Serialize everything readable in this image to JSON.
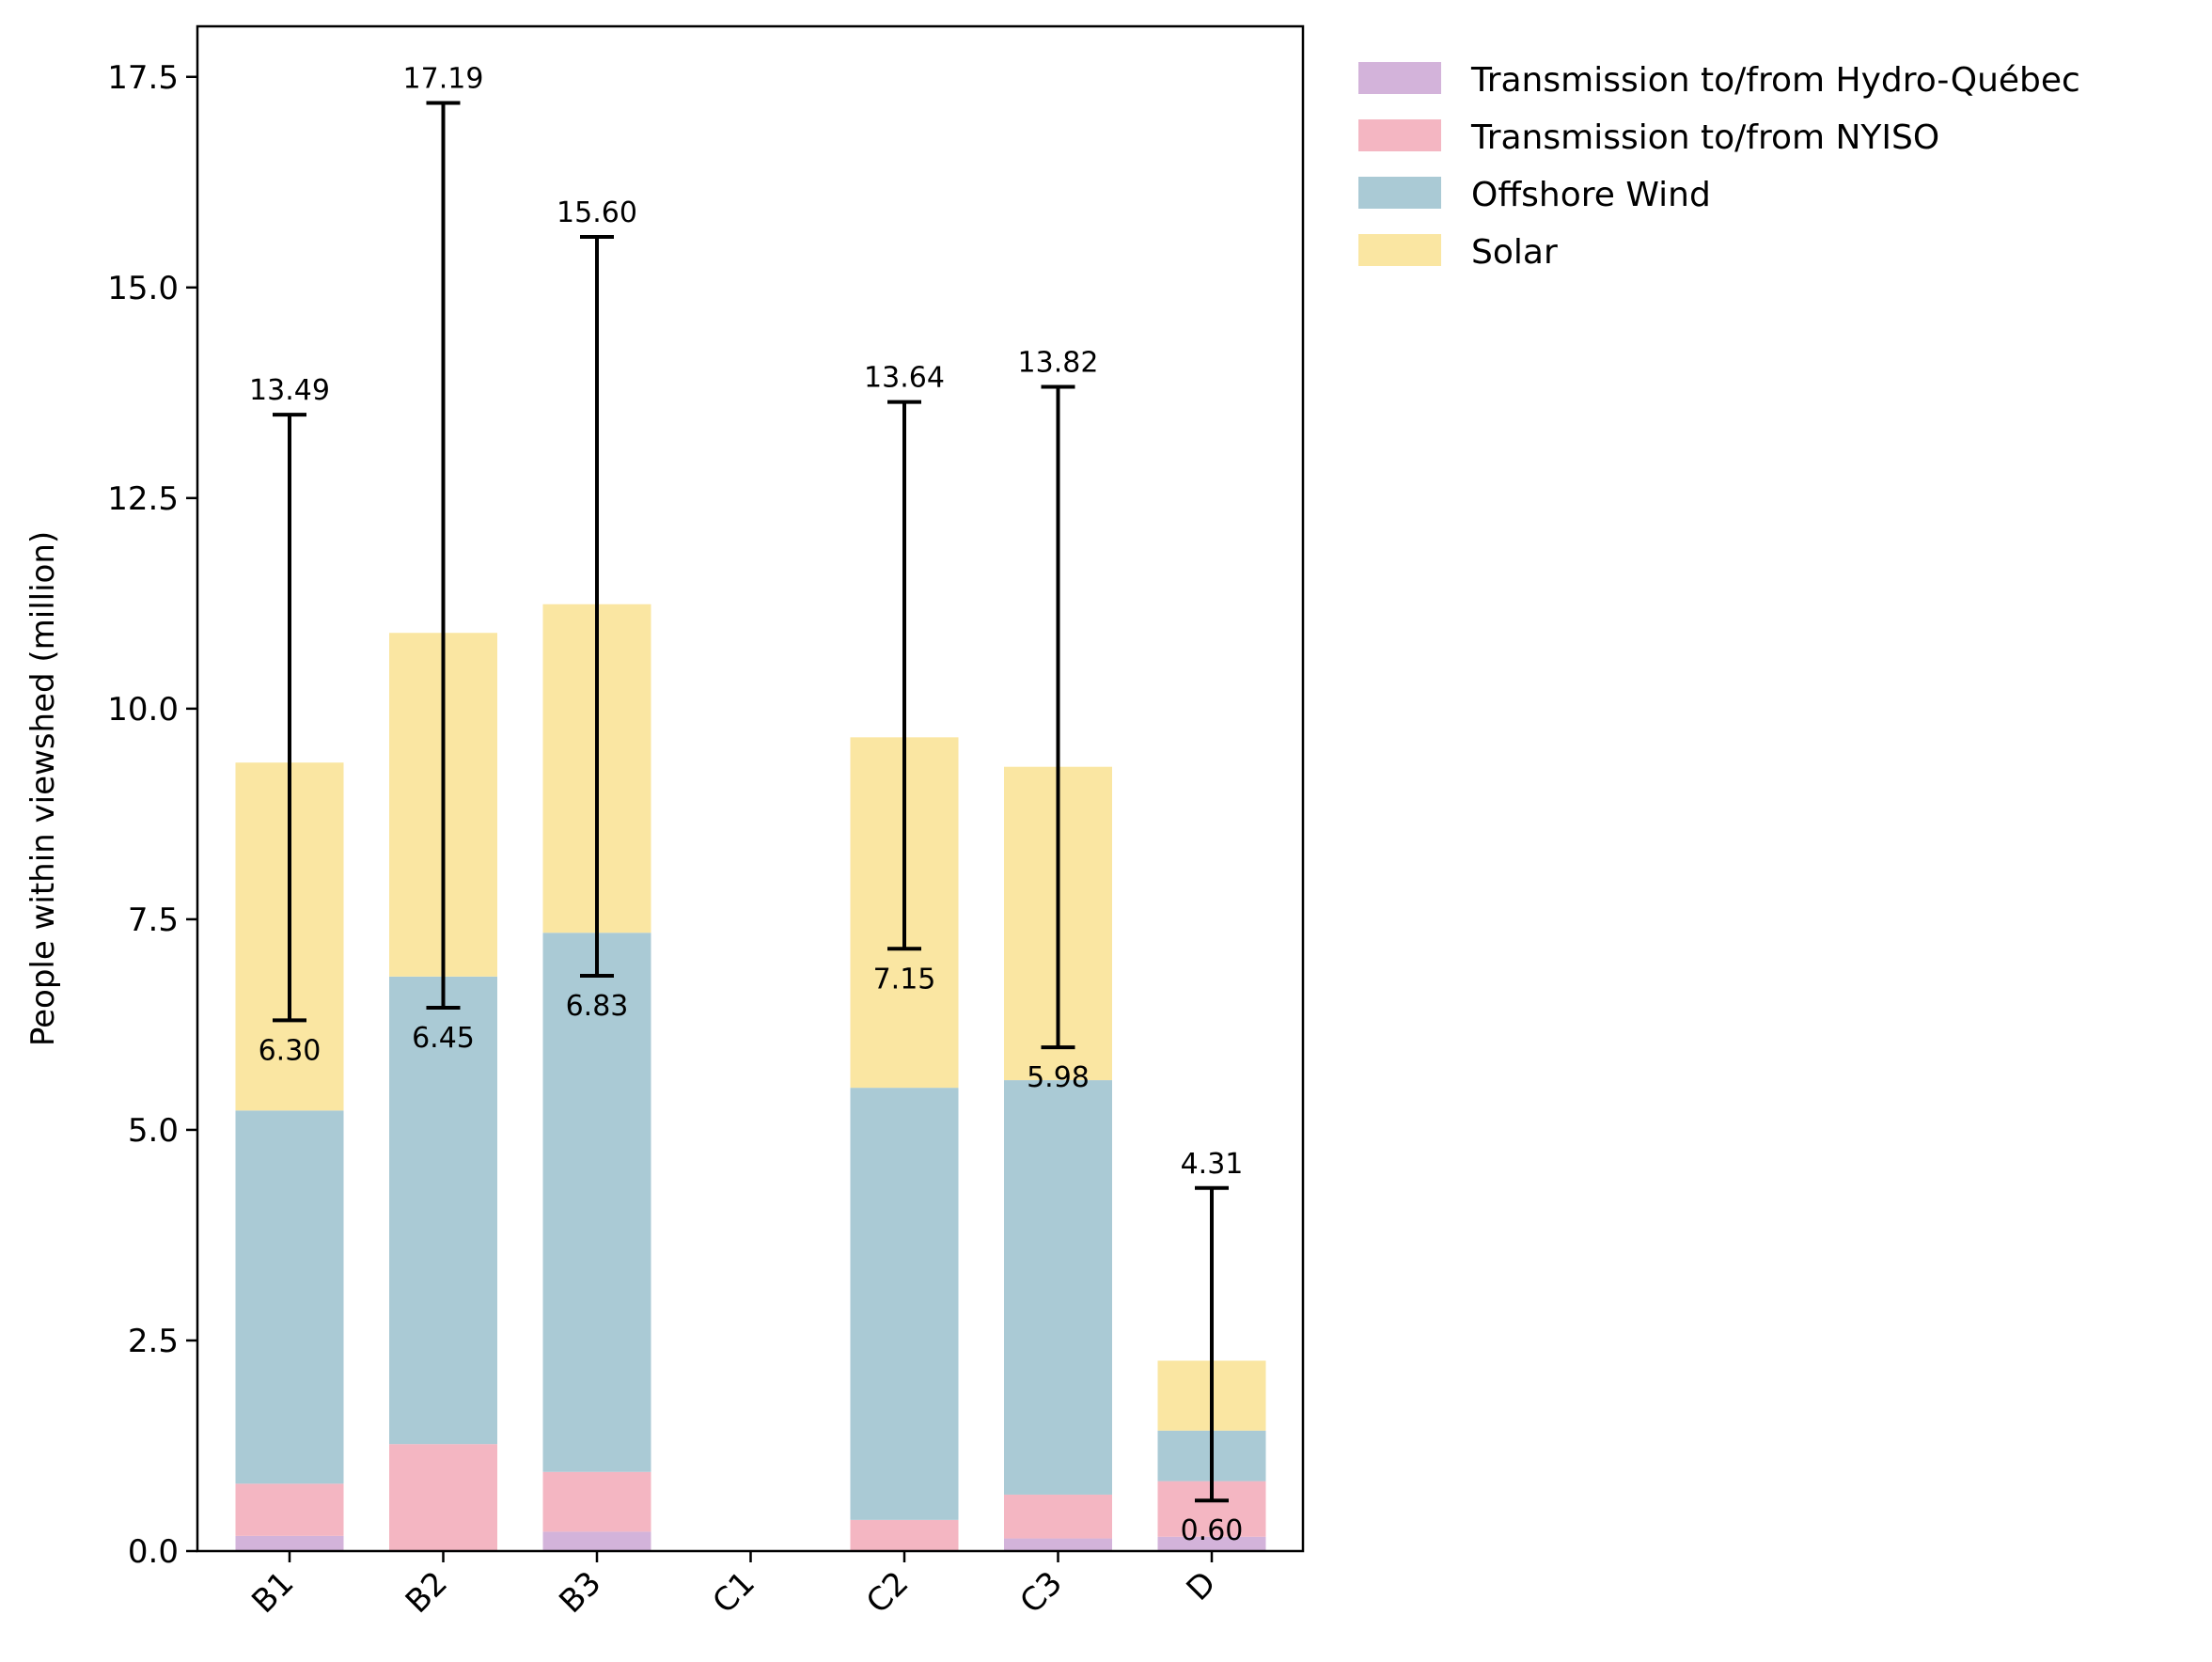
{
  "chart_data": {
    "type": "bar",
    "stacked": true,
    "title": "",
    "xlabel": "",
    "ylabel": "People within viewshed (million)",
    "ylim": [
      0,
      18.1
    ],
    "yticks": [
      0.0,
      2.5,
      5.0,
      7.5,
      10.0,
      12.5,
      15.0,
      17.5
    ],
    "ytick_labels": [
      "0.0",
      "2.5",
      "5.0",
      "7.5",
      "10.0",
      "12.5",
      "15.0",
      "17.5"
    ],
    "categories": [
      "B1",
      "B2",
      "B3",
      "C1",
      "C2",
      "C3",
      "D"
    ],
    "grid": false,
    "legend_position": "outside-top-right",
    "series": [
      {
        "name": "Transmission to/from Hydro-Québec",
        "color": "#d3b3da",
        "values": [
          0.18,
          0.0,
          0.23,
          0.0,
          0.0,
          0.15,
          0.17
        ]
      },
      {
        "name": "Transmission to/from NYISO",
        "color": "#f4b6c2",
        "values": [
          0.62,
          1.27,
          0.71,
          0.0,
          0.37,
          0.52,
          0.66
        ]
      },
      {
        "name": "Offshore Wind",
        "color": "#aacad5",
        "values": [
          4.43,
          5.55,
          6.4,
          0.0,
          5.13,
          4.92,
          0.6
        ]
      },
      {
        "name": "Solar",
        "color": "#fae6a2",
        "values": [
          4.13,
          4.08,
          3.9,
          0.0,
          4.16,
          3.72,
          0.83
        ]
      }
    ],
    "error_bars": [
      {
        "category": "B1",
        "low": 6.3,
        "high": 13.49,
        "low_label": "6.30",
        "high_label": "13.49"
      },
      {
        "category": "B2",
        "low": 6.45,
        "high": 17.19,
        "low_label": "6.45",
        "high_label": "17.19"
      },
      {
        "category": "B3",
        "low": 6.83,
        "high": 15.6,
        "low_label": "6.83",
        "high_label": "15.60"
      },
      {
        "category": "C2",
        "low": 7.15,
        "high": 13.64,
        "low_label": "7.15",
        "high_label": "13.64"
      },
      {
        "category": "C3",
        "low": 5.98,
        "high": 13.82,
        "low_label": "5.98",
        "high_label": "13.82"
      },
      {
        "category": "D",
        "low": 0.6,
        "high": 4.31,
        "low_label": "0.60",
        "high_label": "4.31"
      }
    ]
  }
}
